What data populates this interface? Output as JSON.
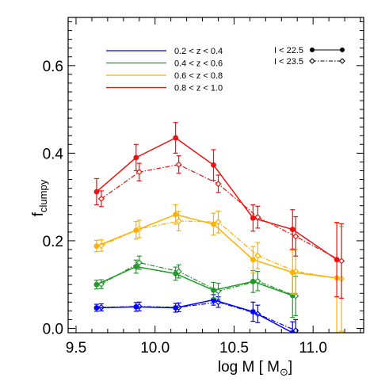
{
  "chart_data": {
    "type": "line",
    "xlabel": "log M [ M",
    "xlabel_sub": "⊙",
    "xlabel_end": "]",
    "ylabel": "f",
    "ylabel_sub": "clumpy",
    "xlim": [
      9.45,
      11.32
    ],
    "ylim": [
      -0.01,
      0.71
    ],
    "x_ticks": [
      9.5,
      10.0,
      10.5,
      11.0
    ],
    "x_tick_labels": [
      "9.5",
      "10.0",
      "10.5",
      "11.0"
    ],
    "y_ticks": [
      0.0,
      0.2,
      0.4,
      0.6
    ],
    "y_tick_labels": [
      "0.0",
      "0.2",
      "0.4",
      "0.6"
    ],
    "grid": false,
    "legend_placement": "top",
    "magnitude_legend": [
      {
        "label": "I < 22.5",
        "style": "solid",
        "marker": "filled-circle"
      },
      {
        "label": "I < 23.5",
        "style": "dash-dot",
        "marker": "open-diamond"
      }
    ],
    "series": [
      {
        "name": "0.2 < z < 0.4",
        "color": "#0000ff",
        "bright": {
          "x": [
            9.63,
            9.88,
            10.13,
            10.37,
            10.62,
            10.87
          ],
          "y": [
            0.047,
            0.049,
            0.047,
            0.065,
            0.038,
            -0.01
          ],
          "err": [
            0.008,
            0.01,
            0.01,
            0.012,
            0.022,
            0.025
          ]
        },
        "faint": {
          "x": [
            9.66,
            9.9,
            10.15,
            10.4,
            10.65,
            10.89
          ],
          "y": [
            0.048,
            0.05,
            0.048,
            0.06,
            0.033,
            -0.005
          ],
          "err": [
            0.008,
            0.01,
            0.01,
            0.012,
            0.02,
            0.025
          ]
        }
      },
      {
        "name": "0.4 < z < 0.6",
        "color": "#22992a",
        "bright": {
          "x": [
            9.63,
            9.88,
            10.13,
            10.37,
            10.62,
            10.87
          ],
          "y": [
            0.1,
            0.141,
            0.125,
            0.087,
            0.107,
            0.075
          ],
          "err": [
            0.01,
            0.015,
            0.015,
            0.018,
            0.025,
            0.05
          ]
        },
        "faint": {
          "x": [
            9.66,
            9.9,
            10.15,
            10.4,
            10.65,
            10.89
          ],
          "y": [
            0.101,
            0.15,
            0.13,
            0.085,
            0.108,
            0.074
          ],
          "err": [
            0.01,
            0.015,
            0.015,
            0.018,
            0.022,
            0.045
          ]
        }
      },
      {
        "name": "0.6 < z < 0.8",
        "color": "#ffb000",
        "bright": {
          "x": [
            9.63,
            9.88,
            10.13,
            10.37,
            10.62,
            10.87,
            11.15
          ],
          "y": [
            0.188,
            0.224,
            0.26,
            0.238,
            0.157,
            0.128,
            0.115
          ],
          "err": [
            0.013,
            0.02,
            0.022,
            0.025,
            0.03,
            0.05,
            0.125
          ]
        },
        "faint": {
          "x": [
            9.66,
            9.9,
            10.15,
            10.4,
            10.65,
            10.89,
            11.18
          ],
          "y": [
            0.189,
            0.227,
            0.245,
            0.243,
            0.166,
            0.13,
            0.113
          ],
          "err": [
            0.013,
            0.02,
            0.022,
            0.025,
            0.03,
            0.05,
            0.12
          ]
        }
      },
      {
        "name": "0.8 < z < 1.0",
        "color": "#ee1111",
        "bright": {
          "x": [
            9.63,
            9.88,
            10.13,
            10.37,
            10.62,
            10.87,
            11.15
          ],
          "y": [
            0.312,
            0.39,
            0.435,
            0.373,
            0.252,
            0.226,
            0.157
          ],
          "err": [
            0.03,
            0.03,
            0.035,
            0.035,
            0.03,
            0.045,
            0.085
          ]
        },
        "faint": {
          "x": [
            9.66,
            9.9,
            10.15,
            10.4,
            10.65,
            10.89,
            11.18
          ],
          "y": [
            0.296,
            0.357,
            0.374,
            0.33,
            0.254,
            0.21,
            0.154
          ],
          "err": [
            0.018,
            0.02,
            0.02,
            0.02,
            0.025,
            0.045,
            0.085
          ]
        }
      }
    ]
  }
}
